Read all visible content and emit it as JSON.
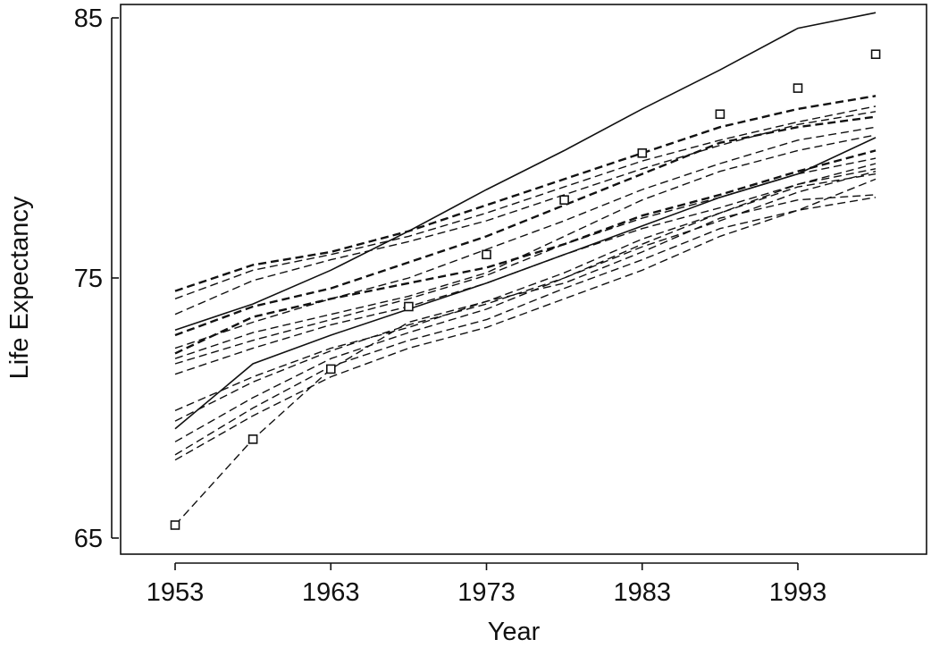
{
  "chart_data": {
    "type": "line",
    "title": "",
    "xlabel": "Year",
    "ylabel": "Life Expectancy",
    "xlim": [
      1948,
      2002
    ],
    "ylim": [
      64.5,
      85.2
    ],
    "x_ticks": [
      1953,
      1963,
      1973,
      1983,
      1993
    ],
    "y_ticks": [
      65,
      75,
      85
    ],
    "grid": false,
    "legend": "none",
    "x": [
      1953,
      1958,
      1963,
      1968,
      1973,
      1978,
      1983,
      1988,
      1993,
      1998
    ],
    "series": [
      {
        "values": [
          73.0,
          74.0,
          75.3,
          76.8,
          78.4,
          79.9,
          81.5,
          83.0,
          84.6,
          85.2
        ],
        "style": "solid"
      },
      {
        "values": [
          74.5,
          75.5,
          76.0,
          76.8,
          77.8,
          78.8,
          79.8,
          80.8,
          81.5,
          82.0
        ],
        "style": "thick"
      },
      {
        "values": [
          74.2,
          75.3,
          75.9,
          76.6,
          77.5,
          78.5,
          79.5,
          80.3,
          81.0,
          81.6
        ],
        "style": "dashed"
      },
      {
        "values": [
          73.6,
          74.9,
          75.7,
          76.4,
          77.2,
          78.2,
          79.2,
          80.1,
          80.9,
          81.4
        ],
        "style": "dashed"
      },
      {
        "values": [
          72.8,
          73.9,
          74.6,
          75.6,
          76.6,
          77.8,
          79.0,
          80.2,
          80.8,
          81.2
        ],
        "style": "thick"
      },
      {
        "values": [
          72.3,
          73.3,
          74.2,
          75.0,
          76.1,
          77.2,
          78.4,
          79.4,
          80.3,
          80.8
        ],
        "style": "dashed"
      },
      {
        "values": [
          71.9,
          72.9,
          73.6,
          74.3,
          75.2,
          76.6,
          78.0,
          79.1,
          79.9,
          80.5
        ],
        "style": "dashed"
      },
      {
        "values": [
          72.1,
          73.5,
          74.2,
          74.8,
          75.4,
          76.3,
          77.4,
          78.2,
          79.1,
          79.9
        ],
        "style": "thick"
      },
      {
        "values": [
          71.7,
          72.6,
          73.4,
          74.2,
          75.1,
          76.3,
          77.3,
          78.1,
          79.0,
          79.6
        ],
        "style": "dashed"
      },
      {
        "values": [
          71.3,
          72.3,
          73.2,
          73.9,
          74.8,
          75.9,
          76.9,
          77.7,
          78.6,
          79.2
        ],
        "style": "dashed"
      },
      {
        "values": [
          69.5,
          71.0,
          72.2,
          73.2,
          74.0,
          75.0,
          76.3,
          77.5,
          78.5,
          79.0
        ],
        "style": "dashed"
      },
      {
        "values": [
          69.2,
          71.7,
          72.8,
          73.8,
          74.8,
          75.9,
          77.0,
          78.1,
          79.0,
          80.4
        ],
        "style": "solid"
      },
      {
        "values": [
          69.9,
          71.2,
          72.3,
          73.1,
          74.1,
          75.2,
          76.5,
          77.5,
          78.6,
          79.4
        ],
        "style": "dashed"
      },
      {
        "values": [
          68.7,
          70.4,
          71.9,
          72.9,
          73.8,
          75.0,
          76.2,
          77.2,
          78.3,
          79.1
        ],
        "style": "dashed"
      },
      {
        "values": [
          68.2,
          70.0,
          71.6,
          72.6,
          73.4,
          74.6,
          75.7,
          76.9,
          77.6,
          78.8
        ],
        "style": "dashed"
      },
      {
        "values": [
          68.0,
          69.7,
          71.2,
          72.3,
          73.1,
          74.2,
          75.3,
          76.6,
          77.6,
          78.1
        ],
        "style": "dashed"
      },
      {
        "values": [
          65.5,
          68.8,
          71.5,
          73.3,
          74.1,
          74.8,
          76.0,
          77.3,
          78.0,
          78.2
        ],
        "style": "dashed"
      }
    ],
    "marker_points": [
      {
        "x": 1953,
        "y": 65.5
      },
      {
        "x": 1958,
        "y": 68.8
      },
      {
        "x": 1963,
        "y": 71.5
      },
      {
        "x": 1968,
        "y": 73.9
      },
      {
        "x": 1973,
        "y": 75.9
      },
      {
        "x": 1978,
        "y": 78.0
      },
      {
        "x": 1983,
        "y": 79.8
      },
      {
        "x": 1988,
        "y": 81.3
      },
      {
        "x": 1993,
        "y": 82.3
      },
      {
        "x": 1998,
        "y": 83.6
      }
    ]
  }
}
